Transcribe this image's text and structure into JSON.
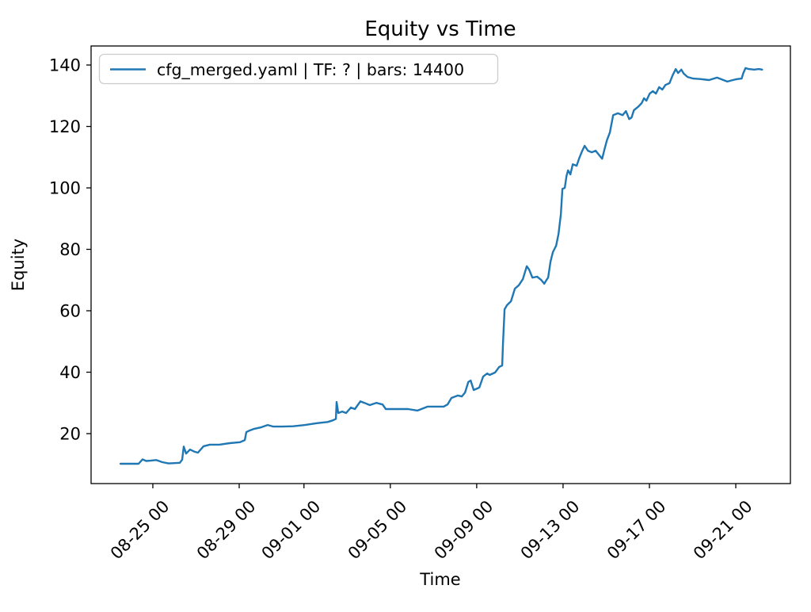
{
  "figure": {
    "background": "#ffffff",
    "text_color": "#000000",
    "spine_color": "#000000",
    "legend_border_color": "#cccccc"
  },
  "chart_data": {
    "type": "line",
    "title": "Equity vs Time",
    "xlabel": "Time",
    "ylabel": "Equity",
    "grid": false,
    "legend": {
      "position": "upper left"
    },
    "x_axis": {
      "unit": "days relative to tick 08-25 00",
      "tick_values": [
        0,
        4,
        7,
        11,
        15,
        19,
        23,
        27
      ],
      "tick_labels": [
        "08-25 00",
        "08-29 00",
        "09-01 00",
        "09-05 00",
        "09-09 00",
        "09-13 00",
        "09-17 00",
        "09-21 00"
      ],
      "lim": [
        -2.86,
        29.53
      ],
      "tick_rotation_deg": 45
    },
    "y_axis": {
      "tick_values": [
        20,
        40,
        60,
        80,
        100,
        120,
        140
      ],
      "tick_labels": [
        "20",
        "40",
        "60",
        "80",
        "100",
        "120",
        "140"
      ],
      "lim": [
        3.74,
        146.2
      ]
    },
    "series": [
      {
        "name": "cfg_merged.yaml | TF: ? | bars: 14400",
        "color": "#1f77b4",
        "line_width": 2.4,
        "points": [
          [
            -1.5,
            10.2
          ],
          [
            -0.66,
            10.2
          ],
          [
            -0.48,
            11.6
          ],
          [
            -0.3,
            11.1
          ],
          [
            -0.11,
            11.2
          ],
          [
            0.15,
            11.4
          ],
          [
            0.44,
            10.7
          ],
          [
            0.73,
            10.3
          ],
          [
            1.0,
            10.4
          ],
          [
            1.25,
            10.5
          ],
          [
            1.36,
            11.5
          ],
          [
            1.43,
            15.8
          ],
          [
            1.54,
            13.5
          ],
          [
            1.72,
            14.8
          ],
          [
            1.94,
            14.1
          ],
          [
            2.09,
            13.8
          ],
          [
            2.35,
            15.9
          ],
          [
            2.64,
            16.4
          ],
          [
            3.08,
            16.4
          ],
          [
            3.56,
            16.9
          ],
          [
            4.04,
            17.2
          ],
          [
            4.26,
            17.9
          ],
          [
            4.33,
            20.5
          ],
          [
            4.48,
            21.0
          ],
          [
            4.66,
            21.5
          ],
          [
            5.03,
            22.1
          ],
          [
            5.32,
            22.8
          ],
          [
            5.58,
            22.3
          ],
          [
            6.0,
            22.3
          ],
          [
            6.5,
            22.4
          ],
          [
            7.05,
            22.8
          ],
          [
            7.6,
            23.4
          ],
          [
            8.1,
            23.8
          ],
          [
            8.33,
            24.3
          ],
          [
            8.48,
            24.8
          ],
          [
            8.51,
            30.3
          ],
          [
            8.59,
            26.7
          ],
          [
            8.77,
            27.2
          ],
          [
            8.95,
            26.7
          ],
          [
            9.17,
            28.5
          ],
          [
            9.36,
            28.0
          ],
          [
            9.61,
            30.5
          ],
          [
            9.8,
            30.0
          ],
          [
            10.05,
            29.3
          ],
          [
            10.35,
            30.0
          ],
          [
            10.64,
            29.5
          ],
          [
            10.79,
            28.0
          ],
          [
            11.27,
            28.0
          ],
          [
            11.82,
            28.0
          ],
          [
            12.26,
            27.5
          ],
          [
            12.73,
            28.8
          ],
          [
            13.2,
            28.8
          ],
          [
            13.47,
            28.8
          ],
          [
            13.65,
            29.5
          ],
          [
            13.83,
            31.6
          ],
          [
            14.13,
            32.4
          ],
          [
            14.31,
            32.1
          ],
          [
            14.46,
            33.4
          ],
          [
            14.61,
            36.8
          ],
          [
            14.72,
            37.3
          ],
          [
            14.86,
            34.2
          ],
          [
            15.12,
            35.0
          ],
          [
            15.3,
            38.6
          ],
          [
            15.49,
            39.6
          ],
          [
            15.6,
            39.1
          ],
          [
            15.85,
            39.9
          ],
          [
            16.04,
            41.7
          ],
          [
            16.18,
            42.2
          ],
          [
            16.22,
            49.4
          ],
          [
            16.29,
            60.5
          ],
          [
            16.4,
            61.8
          ],
          [
            16.59,
            63.1
          ],
          [
            16.77,
            67.2
          ],
          [
            16.95,
            68.3
          ],
          [
            17.14,
            70.3
          ],
          [
            17.32,
            74.5
          ],
          [
            17.43,
            73.4
          ],
          [
            17.58,
            70.8
          ],
          [
            17.8,
            71.1
          ],
          [
            17.98,
            70.1
          ],
          [
            18.13,
            68.8
          ],
          [
            18.24,
            70.1
          ],
          [
            18.31,
            70.8
          ],
          [
            18.42,
            76.0
          ],
          [
            18.53,
            79.1
          ],
          [
            18.68,
            81.2
          ],
          [
            18.79,
            85.0
          ],
          [
            18.9,
            91.5
          ],
          [
            18.97,
            99.7
          ],
          [
            19.08,
            100.0
          ],
          [
            19.16,
            103.9
          ],
          [
            19.23,
            105.7
          ],
          [
            19.34,
            104.4
          ],
          [
            19.45,
            107.7
          ],
          [
            19.63,
            107.2
          ],
          [
            19.74,
            109.5
          ],
          [
            19.89,
            112.1
          ],
          [
            20.0,
            113.7
          ],
          [
            20.15,
            112.1
          ],
          [
            20.33,
            111.6
          ],
          [
            20.51,
            112.1
          ],
          [
            20.66,
            110.8
          ],
          [
            20.81,
            109.5
          ],
          [
            20.92,
            112.6
          ],
          [
            21.03,
            115.5
          ],
          [
            21.17,
            118.1
          ],
          [
            21.32,
            123.7
          ],
          [
            21.54,
            124.3
          ],
          [
            21.76,
            123.7
          ],
          [
            21.91,
            125.0
          ],
          [
            22.06,
            122.4
          ],
          [
            22.17,
            122.9
          ],
          [
            22.28,
            125.3
          ],
          [
            22.46,
            126.3
          ],
          [
            22.64,
            127.6
          ],
          [
            22.75,
            129.2
          ],
          [
            22.86,
            128.4
          ],
          [
            23.01,
            130.7
          ],
          [
            23.16,
            131.5
          ],
          [
            23.3,
            130.7
          ],
          [
            23.45,
            132.8
          ],
          [
            23.6,
            132.0
          ],
          [
            23.74,
            133.5
          ],
          [
            23.93,
            134.1
          ],
          [
            24.07,
            136.6
          ],
          [
            24.22,
            138.7
          ],
          [
            24.33,
            137.4
          ],
          [
            24.48,
            138.5
          ],
          [
            24.59,
            137.2
          ],
          [
            24.77,
            136.1
          ],
          [
            25.03,
            135.6
          ],
          [
            25.4,
            135.4
          ],
          [
            25.76,
            135.1
          ],
          [
            26.13,
            135.9
          ],
          [
            26.31,
            135.4
          ],
          [
            26.61,
            134.6
          ],
          [
            26.86,
            135.1
          ],
          [
            27.05,
            135.4
          ],
          [
            27.27,
            135.6
          ],
          [
            27.34,
            137.2
          ],
          [
            27.45,
            139.0
          ],
          [
            27.6,
            138.7
          ],
          [
            27.85,
            138.5
          ],
          [
            28.07,
            138.7
          ],
          [
            28.22,
            138.5
          ]
        ]
      }
    ]
  }
}
